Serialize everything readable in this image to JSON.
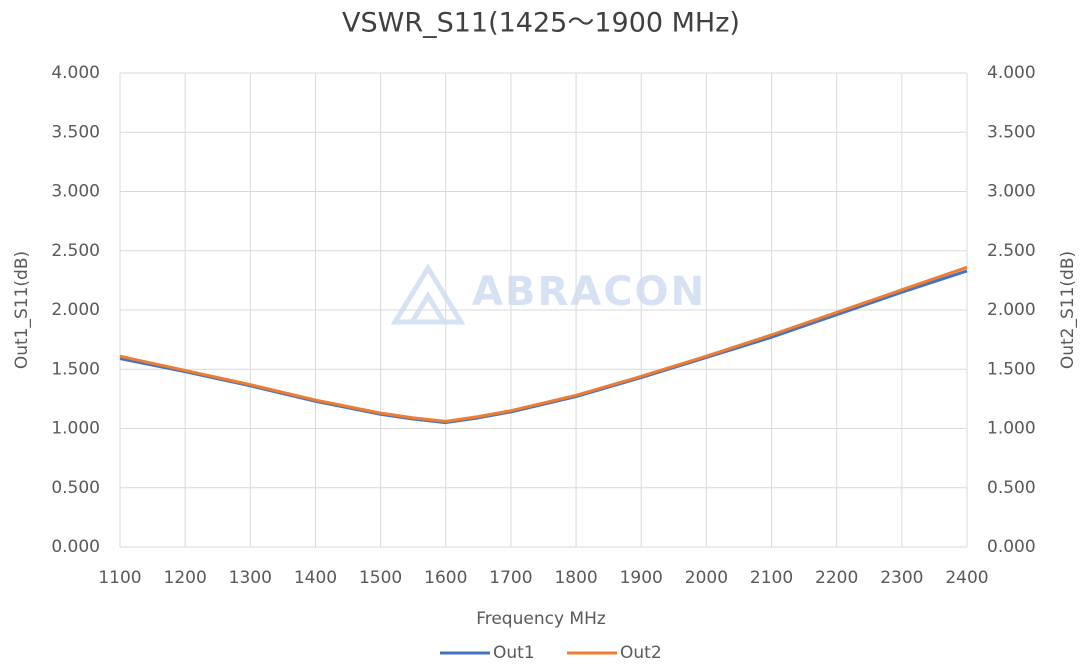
{
  "chart_data": {
    "type": "line",
    "title": "VSWR_S11(1425～1900 MHz)",
    "watermark": "ABRACON",
    "xlabel": "Frequency MHz",
    "ylabel": "Out1_S11(dB)",
    "y2label": "Out2_S11(dB)",
    "x": [
      1100,
      1200,
      1300,
      1400,
      1500,
      1550,
      1600,
      1650,
      1700,
      1800,
      1900,
      2000,
      2100,
      2200,
      2300,
      2400
    ],
    "series": [
      {
        "name": "Out1",
        "color": "#4472c4",
        "values": [
          1.59,
          1.48,
          1.36,
          1.23,
          1.12,
          1.08,
          1.05,
          1.09,
          1.14,
          1.27,
          1.43,
          1.6,
          1.77,
          1.96,
          2.15,
          2.33
        ]
      },
      {
        "name": "Out2",
        "color": "#ed7d31",
        "axis": "y2",
        "values": [
          1.61,
          1.49,
          1.37,
          1.24,
          1.13,
          1.09,
          1.06,
          1.1,
          1.15,
          1.28,
          1.44,
          1.61,
          1.79,
          1.98,
          2.17,
          2.36
        ]
      }
    ],
    "xlim": [
      1100,
      2400
    ],
    "xticks": [
      1100,
      1200,
      1300,
      1400,
      1500,
      1600,
      1700,
      1800,
      1900,
      2000,
      2100,
      2200,
      2300,
      2400
    ],
    "ylim": [
      0,
      4
    ],
    "yticks": [
      {
        "value": 0,
        "label": "0.000"
      },
      {
        "value": 0.5,
        "label": "0.500"
      },
      {
        "value": 1,
        "label": "1.000"
      },
      {
        "value": 1.5,
        "label": "1.500"
      },
      {
        "value": 2,
        "label": "2.000"
      },
      {
        "value": 2.5,
        "label": "2.500"
      },
      {
        "value": 3,
        "label": "3.000"
      },
      {
        "value": 3.5,
        "label": "3.500"
      },
      {
        "value": 4,
        "label": "4.000"
      }
    ],
    "y2lim": [
      0,
      4
    ],
    "y2ticks": [
      {
        "value": 0,
        "label": "0.000"
      },
      {
        "value": 0.5,
        "label": "0.500"
      },
      {
        "value": 1,
        "label": "1.000"
      },
      {
        "value": 1.5,
        "label": "1.500"
      },
      {
        "value": 2,
        "label": "2.000"
      },
      {
        "value": 2.5,
        "label": "2.500"
      },
      {
        "value": 3,
        "label": "3.000"
      },
      {
        "value": 3.5,
        "label": "3.500"
      },
      {
        "value": 4,
        "label": "4.000"
      }
    ],
    "grid": true,
    "legend": "bottom"
  }
}
